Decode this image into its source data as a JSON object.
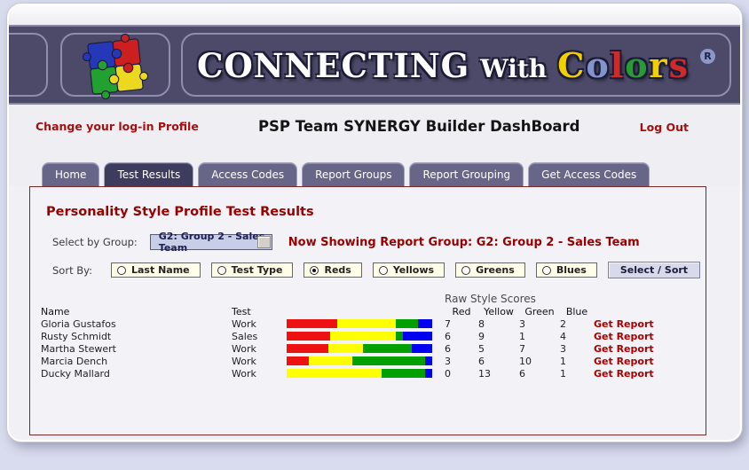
{
  "brand": {
    "connecting": "CONNECTING",
    "with": "With",
    "colors_letters": [
      {
        "ch": "C",
        "color": "#f2cf00"
      },
      {
        "ch": "o",
        "color": "#8593cc"
      },
      {
        "ch": "l",
        "color": "#cf2a2a"
      },
      {
        "ch": "o",
        "color": "#2a9a35"
      },
      {
        "ch": "r",
        "color": "#f2cf00"
      },
      {
        "ch": "s",
        "color": "#cf2a2a"
      }
    ],
    "registered": "R",
    "logo_colors": {
      "blue": "#2438b8",
      "red": "#cc2020",
      "green": "#22a030",
      "yellow": "#ecd81e"
    }
  },
  "topbar": {
    "change_profile": "Change your log-in Profile",
    "title": "PSP Team SYNERGY Builder DashBoard",
    "logout": "Log Out"
  },
  "tabs": [
    {
      "label": "Home",
      "active": false
    },
    {
      "label": "Test Results",
      "active": true
    },
    {
      "label": "Access Codes",
      "active": false
    },
    {
      "label": "Report Groups",
      "active": false
    },
    {
      "label": "Report Grouping",
      "active": false
    },
    {
      "label": "Get Access Codes",
      "active": false
    }
  ],
  "content": {
    "heading": "Personality Style Profile Test Results",
    "group_select_label": "Select by Group:",
    "group_select_value": "G2: Group 2 - Sales Team",
    "now_showing": "Now Showing Report Group: G2: Group 2 - Sales Team",
    "sort_by_label": "Sort By:",
    "sort_options": [
      {
        "label": "Last Name",
        "selected": false
      },
      {
        "label": "Test Type",
        "selected": false
      },
      {
        "label": "Reds",
        "selected": true
      },
      {
        "label": "Yellows",
        "selected": false
      },
      {
        "label": "Greens",
        "selected": false
      },
      {
        "label": "Blues",
        "selected": false
      }
    ],
    "sort_button": "Select / Sort",
    "table": {
      "columns": {
        "name": "Name",
        "test": "Test",
        "scores_group": "Raw Style Scores",
        "score_cols": [
          "Red",
          "Yellow",
          "Green",
          "Blue"
        ]
      },
      "report_link": "Get Report",
      "bar_colors": {
        "red": "#ee1111",
        "yellow": "#ffff00",
        "green": "#00a000",
        "blue": "#0000f0"
      },
      "rows": [
        {
          "name": "Gloria Gustafos",
          "test": "Work",
          "red": 7,
          "yellow": 8,
          "green": 3,
          "blue": 2
        },
        {
          "name": "Rusty Schmidt",
          "test": "Sales",
          "red": 6,
          "yellow": 9,
          "green": 1,
          "blue": 4
        },
        {
          "name": "Martha Stewert",
          "test": "Work",
          "red": 6,
          "yellow": 5,
          "green": 7,
          "blue": 3
        },
        {
          "name": "Marcia Dench",
          "test": "Work",
          "red": 3,
          "yellow": 6,
          "green": 10,
          "blue": 1
        },
        {
          "name": "Ducky Mallard",
          "test": "Work",
          "red": 0,
          "yellow": 13,
          "green": 6,
          "blue": 1
        }
      ]
    }
  }
}
